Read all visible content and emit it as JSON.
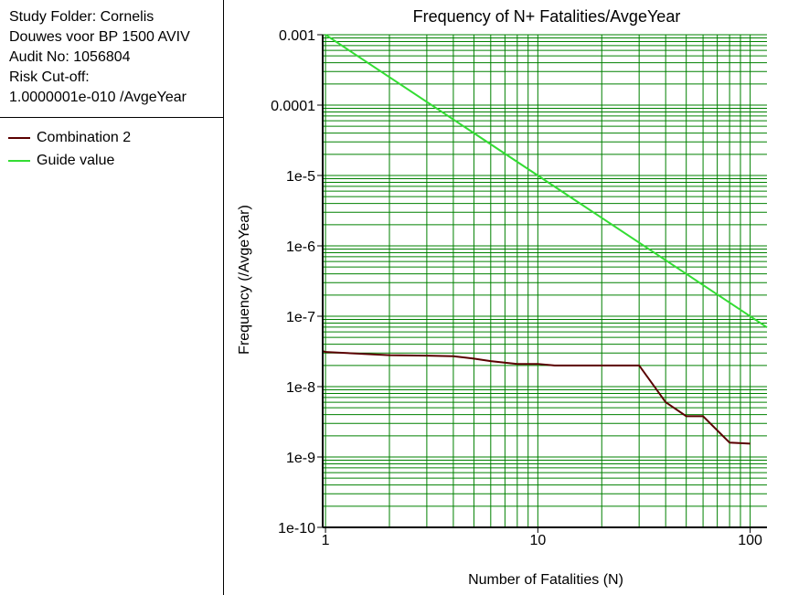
{
  "info": {
    "lines": [
      "Study Folder: Cornelis",
      "Douwes voor BP 1500 AVIV",
      "Audit No: 1056804",
      "Risk Cut-off:",
      "1.0000001e-010 /AvgeYear"
    ]
  },
  "legend": {
    "items": [
      {
        "label": "Combination 2",
        "color": "#5a0000"
      },
      {
        "label": "Guide value",
        "color": "#33dd33"
      }
    ]
  },
  "colors": {
    "grid": "#008000",
    "axis": "#000000",
    "background": "#ffffff"
  },
  "chart_data": {
    "type": "line",
    "title": "Frequency of N+ Fatalities/AvgeYear",
    "xlabel": "Number of Fatalities (N)",
    "ylabel": "Frequency (/AvgeYear)",
    "x_scale": "log",
    "y_scale": "log",
    "xlim": [
      0.97,
      120
    ],
    "ylim": [
      1e-10,
      0.001
    ],
    "grid": true,
    "x_tick_labels": [
      {
        "value": 1,
        "label": "1"
      },
      {
        "value": 10,
        "label": "10"
      },
      {
        "value": 100,
        "label": "100"
      }
    ],
    "y_tick_labels": [
      {
        "value": 0.001,
        "label": "0.001"
      },
      {
        "value": 0.0001,
        "label": "0.0001"
      },
      {
        "value": 1e-05,
        "label": "1e-5"
      },
      {
        "value": 1e-06,
        "label": "1e-6"
      },
      {
        "value": 1e-07,
        "label": "1e-7"
      },
      {
        "value": 1e-08,
        "label": "1e-8"
      },
      {
        "value": 1e-09,
        "label": "1e-9"
      },
      {
        "value": 1e-10,
        "label": "1e-10"
      }
    ],
    "series": [
      {
        "name": "Combination 2",
        "x": [
          0.97,
          1,
          2,
          3,
          4,
          5,
          6,
          8,
          10,
          12,
          15,
          20,
          30,
          40,
          50,
          60,
          80,
          100
        ],
        "y": [
          3.2e-08,
          3.1e-08,
          2.8e-08,
          2.75e-08,
          2.7e-08,
          2.5e-08,
          2.3e-08,
          2.1e-08,
          2.1e-08,
          2e-08,
          2e-08,
          2e-08,
          2e-08,
          6e-09,
          3.8e-09,
          3.8e-09,
          1.6e-09,
          1.55e-09
        ]
      },
      {
        "name": "Guide value",
        "x": [
          1,
          120
        ],
        "y": [
          0.001,
          6.94e-08
        ]
      }
    ]
  }
}
